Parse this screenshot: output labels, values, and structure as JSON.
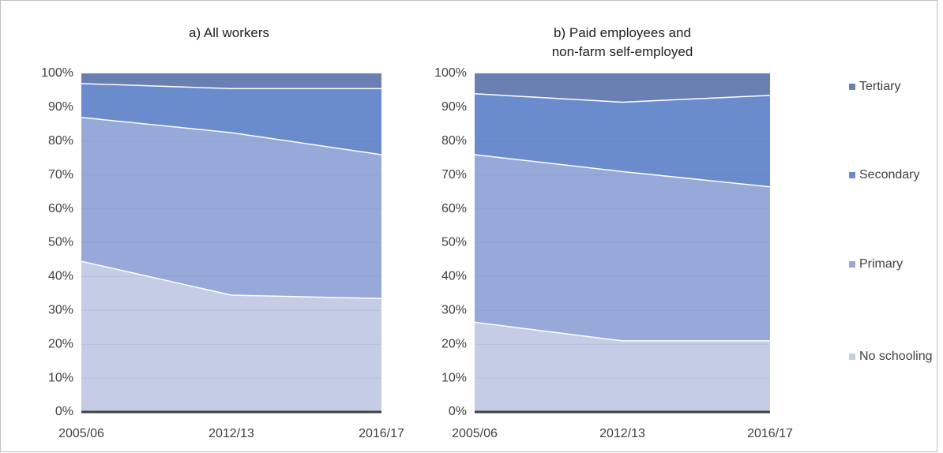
{
  "chart_data": [
    {
      "type": "stacked-area",
      "title": "a) All workers",
      "categories": [
        "2005/06",
        "2012/13",
        "2016/17"
      ],
      "series": [
        {
          "name": "No schooling",
          "color": "#c5cce6",
          "values": [
            44.5,
            34.5,
            33.5
          ]
        },
        {
          "name": "Primary",
          "color": "#97a9d8",
          "values": [
            42.5,
            48,
            42.5
          ]
        },
        {
          "name": "Secondary",
          "color": "#6a8ccc",
          "values": [
            10,
            13,
            19.5
          ]
        },
        {
          "name": "Tertiary",
          "color": "#6a80b3",
          "values": [
            3,
            4.5,
            4.5
          ]
        }
      ],
      "ylim": [
        0,
        100
      ],
      "yticks": [
        {
          "value": 0,
          "label": "0%"
        },
        {
          "value": 10,
          "label": "10%"
        },
        {
          "value": 20,
          "label": "20%"
        },
        {
          "value": 30,
          "label": "30%"
        },
        {
          "value": 40,
          "label": "40%"
        },
        {
          "value": 50,
          "label": "50%"
        },
        {
          "value": 60,
          "label": "60%"
        },
        {
          "value": 70,
          "label": "70%"
        },
        {
          "value": 80,
          "label": "80%"
        },
        {
          "value": 90,
          "label": "90%"
        },
        {
          "value": 100,
          "label": "100%"
        }
      ],
      "grid": true
    },
    {
      "type": "stacked-area",
      "title": "b) Paid employees and\nnon-farm self-employed",
      "categories": [
        "2005/06",
        "2012/13",
        "2016/17"
      ],
      "series": [
        {
          "name": "No schooling",
          "color": "#c5cce6",
          "values": [
            26.5,
            21,
            21
          ]
        },
        {
          "name": "Primary",
          "color": "#97a9d8",
          "values": [
            49.5,
            50,
            45.5
          ]
        },
        {
          "name": "Secondary",
          "color": "#6a8ccc",
          "values": [
            18,
            20.5,
            27
          ]
        },
        {
          "name": "Tertiary",
          "color": "#6a80b3",
          "values": [
            6,
            8.5,
            6.5
          ]
        }
      ],
      "ylim": [
        0,
        100
      ],
      "yticks": [
        {
          "value": 0,
          "label": "0%"
        },
        {
          "value": 10,
          "label": "10%"
        },
        {
          "value": 20,
          "label": "20%"
        },
        {
          "value": 30,
          "label": "30%"
        },
        {
          "value": 40,
          "label": "40%"
        },
        {
          "value": 50,
          "label": "50%"
        },
        {
          "value": 60,
          "label": "60%"
        },
        {
          "value": 70,
          "label": "70%"
        },
        {
          "value": 80,
          "label": "80%"
        },
        {
          "value": 90,
          "label": "90%"
        },
        {
          "value": 100,
          "label": "100%"
        }
      ],
      "grid": true,
      "legend": "right"
    }
  ]
}
